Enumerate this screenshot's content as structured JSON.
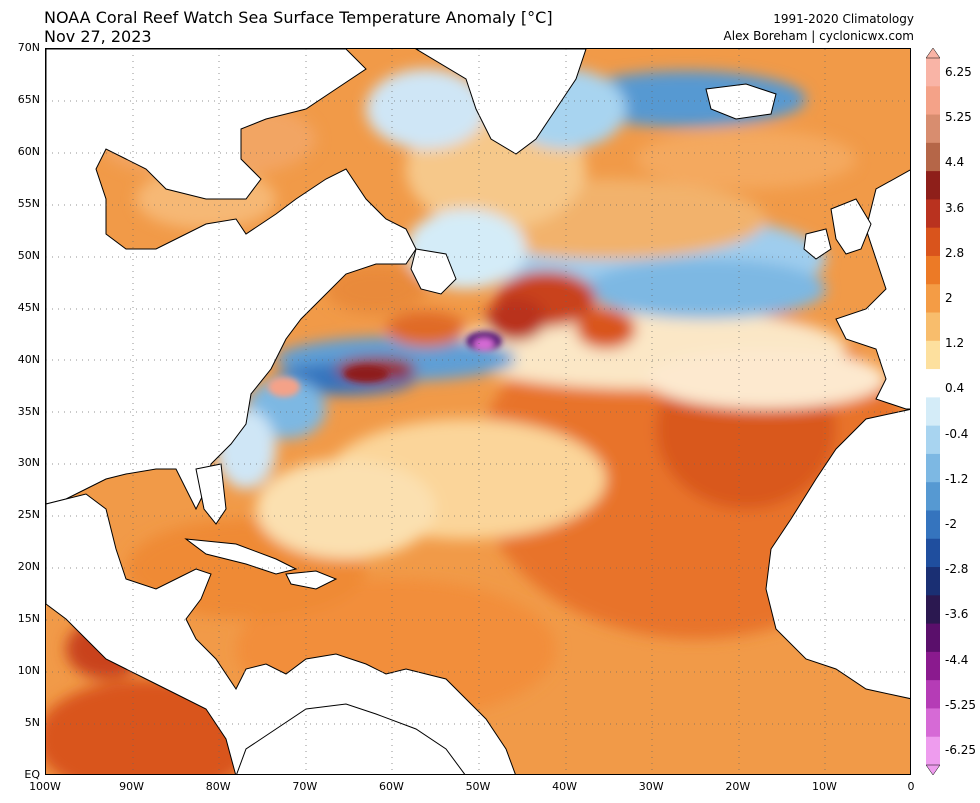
{
  "header": {
    "title": "NOAA Coral Reef Watch Sea Surface Temperature Anomaly [°C]",
    "date": "Nov 27, 2023",
    "climatology": "1991-2020 Climatology",
    "credit": "Alex Boreham | cyclonicwx.com"
  },
  "axes": {
    "lat_labels": [
      "70N",
      "65N",
      "60N",
      "55N",
      "50N",
      "45N",
      "40N",
      "35N",
      "30N",
      "25N",
      "20N",
      "15N",
      "10N",
      "5N",
      "EQ"
    ],
    "lon_labels": [
      "100W",
      "90W",
      "80W",
      "70W",
      "60W",
      "50W",
      "40W",
      "30W",
      "20W",
      "10W",
      "0"
    ]
  },
  "colorbar": {
    "labels": [
      "6.25",
      "5.25",
      "4.4",
      "3.6",
      "2.8",
      "2",
      "1.2",
      "0.4",
      "-0.4",
      "-1.2",
      "-2",
      "-2.8",
      "-3.6",
      "-4.4",
      "-5.25",
      "-6.25"
    ],
    "colors": [
      "#f9b4a6",
      "#f4a288",
      "#d88d6f",
      "#b56648",
      "#8e1f1a",
      "#b9321f",
      "#d9541c",
      "#ec7a26",
      "#f49c45",
      "#f8bd6c",
      "#fde09e",
      "#ffffff",
      "#d4ecf8",
      "#a8d4f0",
      "#7db8e3",
      "#5699d2",
      "#3574be",
      "#1f4e9e",
      "#1a2f73",
      "#2b1850",
      "#5a0f6b",
      "#8a1a8e",
      "#b53cb6",
      "#d66ad6",
      "#ee9cee"
    ]
  },
  "map": {
    "extent": {
      "lon_min": -100,
      "lon_max": 0,
      "lat_min": 0,
      "lat_max": 70
    }
  }
}
